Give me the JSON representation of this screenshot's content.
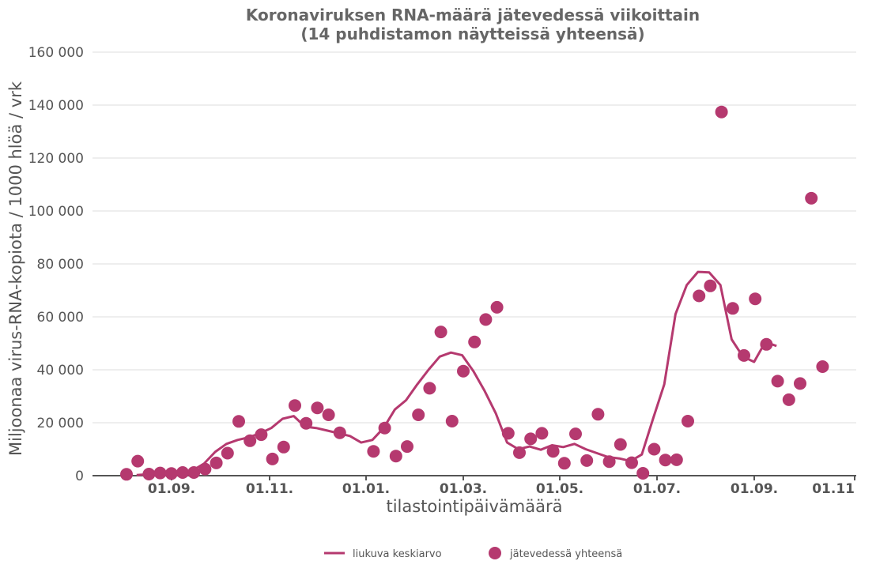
{
  "chart_data": {
    "type": "line+scatter",
    "title": "Koronaviruksen RNA-määrä jätevedessä viikoittain",
    "subtitle": "(14 puhdistamon näytteissä yhteensä)",
    "xlabel": "tilastointipäivämäärä",
    "ylabel": "Miljoonaa virus-RNA-kopiota / 1000 hlöä / vrk",
    "x_tick_labels": [
      "01.09.",
      "01.11.",
      "01.01.",
      "01.03.",
      "01.05.",
      "01.07.",
      "01.09.",
      "01.11"
    ],
    "y_tick_labels": [
      "0",
      "20 000",
      "40 000",
      "60 000",
      "80 000",
      "100 000",
      "120 000",
      "140 000",
      "160 000"
    ],
    "ylim": [
      0,
      160000
    ],
    "grid": "horizontal",
    "legend_position": "bottom",
    "colors": {
      "series": "#b5396f",
      "grid": "#dddddd",
      "axis": "#555555"
    },
    "series": [
      {
        "name": "liukuva keskiarvo",
        "kind": "line",
        "points": [
          {
            "week": 0.9,
            "value": 200
          },
          {
            "week": 1.9,
            "value": 500
          },
          {
            "week": 2.9,
            "value": 800
          },
          {
            "week": 3.9,
            "value": 1000
          },
          {
            "week": 4.9,
            "value": 1200
          },
          {
            "week": 5.9,
            "value": 2000
          },
          {
            "week": 6.9,
            "value": 4500
          },
          {
            "week": 7.9,
            "value": 9000
          },
          {
            "week": 8.9,
            "value": 12000
          },
          {
            "week": 9.9,
            "value": 13500
          },
          {
            "week": 10.9,
            "value": 14500
          },
          {
            "week": 11.9,
            "value": 16000
          },
          {
            "week": 12.9,
            "value": 18000
          },
          {
            "week": 13.9,
            "value": 21500
          },
          {
            "week": 14.9,
            "value": 22500
          },
          {
            "week": 15.9,
            "value": 18500
          },
          {
            "week": 16.9,
            "value": 18000
          },
          {
            "week": 17.9,
            "value": 17000
          },
          {
            "week": 18.9,
            "value": 16000
          },
          {
            "week": 19.9,
            "value": 15000
          },
          {
            "week": 20.9,
            "value": 12500
          },
          {
            "week": 21.9,
            "value": 13500
          },
          {
            "week": 22.9,
            "value": 18000
          },
          {
            "week": 23.9,
            "value": 25000
          },
          {
            "week": 24.9,
            "value": 28500
          },
          {
            "week": 25.9,
            "value": 34500
          },
          {
            "week": 26.9,
            "value": 40000
          },
          {
            "week": 27.9,
            "value": 45000
          },
          {
            "week": 28.9,
            "value": 46500
          },
          {
            "week": 29.9,
            "value": 45500
          },
          {
            "week": 30.9,
            "value": 39500
          },
          {
            "week": 31.9,
            "value": 32000
          },
          {
            "week": 32.9,
            "value": 23500
          },
          {
            "week": 33.9,
            "value": 12500
          },
          {
            "week": 34.9,
            "value": 10000
          },
          {
            "week": 35.9,
            "value": 11000
          },
          {
            "week": 36.9,
            "value": 9800
          },
          {
            "week": 37.9,
            "value": 11500
          },
          {
            "week": 38.9,
            "value": 10800
          },
          {
            "week": 39.9,
            "value": 12000
          },
          {
            "week": 40.9,
            "value": 10000
          },
          {
            "week": 41.9,
            "value": 8500
          },
          {
            "week": 42.9,
            "value": 7000
          },
          {
            "week": 43.9,
            "value": 6500
          },
          {
            "week": 44.9,
            "value": 5500
          },
          {
            "week": 45.9,
            "value": 8000
          },
          {
            "week": 46.9,
            "value": 21500
          },
          {
            "week": 47.9,
            "value": 34500
          },
          {
            "week": 48.9,
            "value": 61000
          },
          {
            "week": 49.9,
            "value": 72000
          },
          {
            "week": 50.9,
            "value": 77000
          },
          {
            "week": 51.9,
            "value": 76800
          },
          {
            "week": 52.9,
            "value": 72000
          },
          {
            "week": 53.9,
            "value": 51500
          },
          {
            "week": 54.9,
            "value": 45000
          },
          {
            "week": 55.9,
            "value": 43000
          },
          {
            "week": 56.9,
            "value": 50500
          },
          {
            "week": 57.9,
            "value": 49000
          }
        ]
      },
      {
        "name": "jätevedessä yhteensä",
        "kind": "scatter",
        "points": [
          {
            "week": 0.0,
            "value": 500
          },
          {
            "week": 1.0,
            "value": 5500
          },
          {
            "week": 2.0,
            "value": 600
          },
          {
            "week": 3.0,
            "value": 1000
          },
          {
            "week": 4.0,
            "value": 800
          },
          {
            "week": 5.0,
            "value": 1200
          },
          {
            "week": 6.0,
            "value": 1200
          },
          {
            "week": 7.0,
            "value": 2500
          },
          {
            "week": 8.0,
            "value": 4800
          },
          {
            "week": 9.0,
            "value": 8500
          },
          {
            "week": 10.0,
            "value": 20500
          },
          {
            "week": 11.0,
            "value": 13200
          },
          {
            "week": 12.0,
            "value": 15500
          },
          {
            "week": 13.0,
            "value": 6300
          },
          {
            "week": 14.0,
            "value": 10800
          },
          {
            "week": 15.0,
            "value": 26500
          },
          {
            "week": 16.0,
            "value": 19800
          },
          {
            "week": 17.0,
            "value": 25600
          },
          {
            "week": 18.0,
            "value": 23000
          },
          {
            "week": 19.0,
            "value": 16200
          },
          {
            "week": 22.0,
            "value": 9200
          },
          {
            "week": 23.0,
            "value": 18000
          },
          {
            "week": 24.0,
            "value": 7400
          },
          {
            "week": 25.0,
            "value": 11000
          },
          {
            "week": 26.0,
            "value": 23000
          },
          {
            "week": 27.0,
            "value": 33000
          },
          {
            "week": 28.0,
            "value": 54300
          },
          {
            "week": 29.0,
            "value": 20600
          },
          {
            "week": 30.0,
            "value": 39500
          },
          {
            "week": 31.0,
            "value": 50500
          },
          {
            "week": 32.0,
            "value": 59000
          },
          {
            "week": 33.0,
            "value": 63600
          },
          {
            "week": 34.0,
            "value": 16000
          },
          {
            "week": 35.0,
            "value": 8700
          },
          {
            "week": 36.0,
            "value": 13900
          },
          {
            "week": 37.0,
            "value": 16000
          },
          {
            "week": 38.0,
            "value": 9200
          },
          {
            "week": 39.0,
            "value": 4700
          },
          {
            "week": 40.0,
            "value": 15800
          },
          {
            "week": 41.0,
            "value": 5700
          },
          {
            "week": 42.0,
            "value": 23200
          },
          {
            "week": 43.0,
            "value": 5300
          },
          {
            "week": 44.0,
            "value": 11800
          },
          {
            "week": 45.0,
            "value": 4900
          },
          {
            "week": 46.0,
            "value": 900
          },
          {
            "week": 47.0,
            "value": 10000
          },
          {
            "week": 48.0,
            "value": 5900
          },
          {
            "week": 49.0,
            "value": 6000
          },
          {
            "week": 50.0,
            "value": 20600
          },
          {
            "week": 51.0,
            "value": 67900
          },
          {
            "week": 52.0,
            "value": 71700
          },
          {
            "week": 53.0,
            "value": 137400
          },
          {
            "week": 54.0,
            "value": 63200
          },
          {
            "week": 55.0,
            "value": 45400
          },
          {
            "week": 56.0,
            "value": 66800
          },
          {
            "week": 57.0,
            "value": 49600
          },
          {
            "week": 58.0,
            "value": 35700
          },
          {
            "week": 59.0,
            "value": 28700
          },
          {
            "week": 60.0,
            "value": 34800
          },
          {
            "week": 61.0,
            "value": 104800
          },
          {
            "week": 62.0,
            "value": 41200
          }
        ]
      }
    ]
  }
}
